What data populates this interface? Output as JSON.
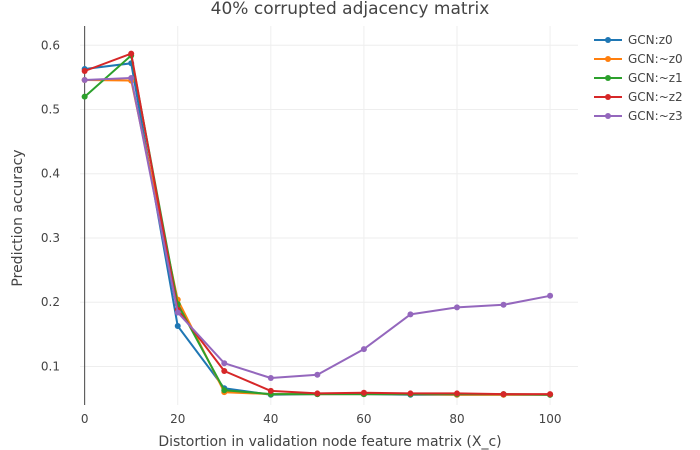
{
  "chart_data": {
    "type": "line",
    "title": "40% corrupted adjacency matrix",
    "xlabel": "Distortion in validation node feature matrix (X_c)",
    "ylabel": "Prediction accuracy",
    "x": [
      0,
      10,
      20,
      30,
      40,
      50,
      60,
      70,
      80,
      90,
      100
    ],
    "xlim": [
      -1,
      106
    ],
    "ylim": [
      0.04,
      0.63
    ],
    "xticks": [
      0,
      20,
      40,
      60,
      80,
      100
    ],
    "yticks": [
      0.1,
      0.2,
      0.3,
      0.4,
      0.5,
      0.6
    ],
    "xtick_labels": [
      "0",
      "20",
      "40",
      "60",
      "80",
      "100"
    ],
    "ytick_labels": [
      "0.1",
      "0.2",
      "0.3",
      "0.4",
      "0.5",
      "0.6"
    ],
    "grid": true,
    "legend_position": "top-right",
    "series": [
      {
        "name": "GCN:z0",
        "color": "#1f77b4",
        "values": [
          0.563,
          0.572,
          0.163,
          0.066,
          0.056,
          0.057,
          0.057,
          0.056,
          0.056,
          0.056,
          0.056
        ]
      },
      {
        "name": "GCN:~z0",
        "color": "#ff7f0e",
        "values": [
          0.546,
          0.545,
          0.204,
          0.06,
          0.057,
          0.057,
          0.057,
          0.057,
          0.056,
          0.056,
          0.056
        ]
      },
      {
        "name": "GCN:~z1",
        "color": "#2ca02c",
        "values": [
          0.52,
          0.584,
          0.197,
          0.063,
          0.057,
          0.057,
          0.057,
          0.057,
          0.057,
          0.057,
          0.056
        ]
      },
      {
        "name": "GCN:~z2",
        "color": "#d62728",
        "values": [
          0.56,
          0.587,
          0.188,
          0.093,
          0.062,
          0.058,
          0.059,
          0.058,
          0.058,
          0.057,
          0.057
        ]
      },
      {
        "name": "GCN:~z3",
        "color": "#9467bd",
        "values": [
          0.546,
          0.549,
          0.184,
          0.105,
          0.082,
          0.087,
          0.127,
          0.181,
          0.192,
          0.196,
          0.21
        ]
      }
    ]
  }
}
